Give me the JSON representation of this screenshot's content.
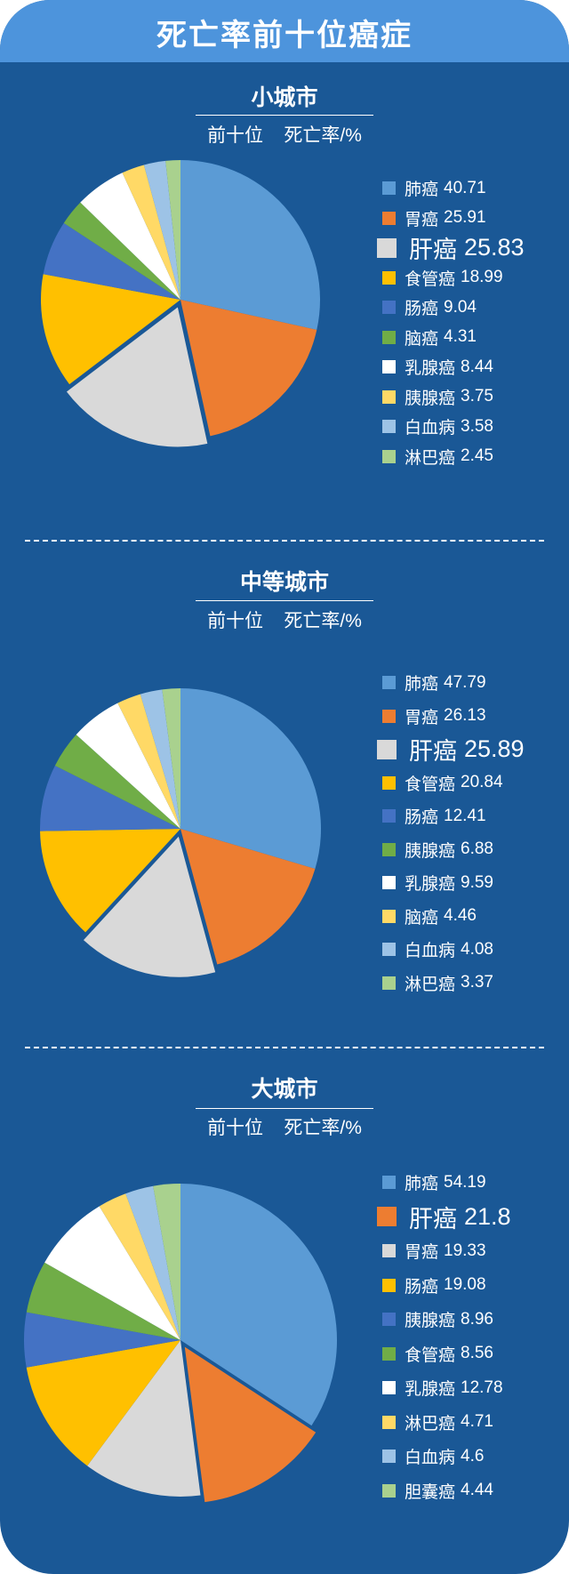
{
  "header": {
    "title": "死亡率前十位癌症"
  },
  "colors": {
    "background": "#1a5896",
    "header": "#4d94dc",
    "text": "#ffffff"
  },
  "palette": [
    "#5b9bd5",
    "#ed7d31",
    "#d9d9d9",
    "#ffc000",
    "#4472c4",
    "#70ad47",
    "#ffffff",
    "#ffd966",
    "#9dc3e6",
    "#a9d18e"
  ],
  "sections": [
    {
      "title": "小城市",
      "subtitle_left": "前十位",
      "subtitle_right": "死亡率/%",
      "legend": [
        {
          "name": "肺癌",
          "value": "40.71"
        },
        {
          "name": "胃癌",
          "value": "25.91"
        },
        {
          "name": "肝癌",
          "value": "25.83"
        },
        {
          "name": "食管癌",
          "value": "18.99"
        },
        {
          "name": "肠癌",
          "value": "9.04"
        },
        {
          "name": "脑癌",
          "value": "4.31"
        },
        {
          "name": "乳腺癌",
          "value": "8.44"
        },
        {
          "name": "胰腺癌",
          "value": "3.75"
        },
        {
          "name": "白血病",
          "value": "3.58"
        },
        {
          "name": "淋巴癌",
          "value": "2.45"
        }
      ]
    },
    {
      "title": "中等城市",
      "subtitle_left": "前十位",
      "subtitle_right": "死亡率/%",
      "legend": [
        {
          "name": "肺癌",
          "value": "47.79"
        },
        {
          "name": "胃癌",
          "value": "26.13"
        },
        {
          "name": "肝癌",
          "value": "25.89"
        },
        {
          "name": "食管癌",
          "value": "20.84"
        },
        {
          "name": "肠癌",
          "value": "12.41"
        },
        {
          "name": "胰腺癌",
          "value": "6.88"
        },
        {
          "name": "乳腺癌",
          "value": "9.59"
        },
        {
          "name": "脑癌",
          "value": "4.46"
        },
        {
          "name": "白血病",
          "value": "4.08"
        },
        {
          "name": "淋巴癌",
          "value": "3.37"
        }
      ]
    },
    {
      "title": "大城市",
      "subtitle_left": "前十位",
      "subtitle_right": "死亡率/%",
      "legend": [
        {
          "name": "肺癌",
          "value": "54.19"
        },
        {
          "name": "肝癌",
          "value": "21.8"
        },
        {
          "name": "胃癌",
          "value": "19.33"
        },
        {
          "name": "肠癌",
          "value": "19.08"
        },
        {
          "name": "胰腺癌",
          "value": "8.96"
        },
        {
          "name": "食管癌",
          "value": "8.56"
        },
        {
          "name": "乳腺癌",
          "value": "12.78"
        },
        {
          "name": "淋巴癌",
          "value": "4.71"
        },
        {
          "name": "白血病",
          "value": "4.6"
        },
        {
          "name": "胆囊癌",
          "value": "4.44"
        }
      ]
    }
  ],
  "chart_data": [
    {
      "type": "pie",
      "title": "小城市 前十位 死亡率/%",
      "categories": [
        "肺癌",
        "胃癌",
        "肝癌",
        "食管癌",
        "肠癌",
        "脑癌",
        "乳腺癌",
        "胰腺癌",
        "白血病",
        "淋巴癌"
      ],
      "values": [
        40.71,
        25.91,
        25.83,
        18.99,
        9.04,
        4.31,
        8.44,
        3.75,
        3.58,
        2.45
      ],
      "colors": [
        "#5b9bd5",
        "#ed7d31",
        "#d9d9d9",
        "#ffc000",
        "#4472c4",
        "#70ad47",
        "#ffffff",
        "#ffd966",
        "#9dc3e6",
        "#a9d18e"
      ],
      "exploded_index": 2,
      "highlighted_legend": "肝癌",
      "start_angle": "12 o'clock, clockwise",
      "legend_position": "right"
    },
    {
      "type": "pie",
      "title": "中等城市 前十位 死亡率/%",
      "categories": [
        "肺癌",
        "胃癌",
        "肝癌",
        "食管癌",
        "肠癌",
        "胰腺癌",
        "乳腺癌",
        "脑癌",
        "白血病",
        "淋巴癌"
      ],
      "values": [
        47.79,
        26.13,
        25.89,
        20.84,
        12.41,
        6.88,
        9.59,
        4.46,
        4.08,
        3.37
      ],
      "colors": [
        "#5b9bd5",
        "#ed7d31",
        "#d9d9d9",
        "#ffc000",
        "#4472c4",
        "#70ad47",
        "#ffffff",
        "#ffd966",
        "#9dc3e6",
        "#a9d18e"
      ],
      "exploded_index": 2,
      "highlighted_legend": "肝癌",
      "start_angle": "12 o'clock, clockwise",
      "legend_position": "right"
    },
    {
      "type": "pie",
      "title": "大城市 前十位 死亡率/%",
      "categories": [
        "肺癌",
        "肝癌",
        "胃癌",
        "肠癌",
        "胰腺癌",
        "食管癌",
        "乳腺癌",
        "淋巴癌",
        "白血病",
        "胆囊癌"
      ],
      "values": [
        54.19,
        21.8,
        19.33,
        19.08,
        8.96,
        8.56,
        12.78,
        4.71,
        4.6,
        4.44
      ],
      "colors": [
        "#5b9bd5",
        "#ed7d31",
        "#d9d9d9",
        "#ffc000",
        "#4472c4",
        "#70ad47",
        "#ffffff",
        "#ffd966",
        "#9dc3e6",
        "#a9d18e"
      ],
      "exploded_index": 1,
      "highlighted_legend": "肝癌",
      "start_angle": "12 o'clock, clockwise",
      "legend_position": "right"
    }
  ]
}
